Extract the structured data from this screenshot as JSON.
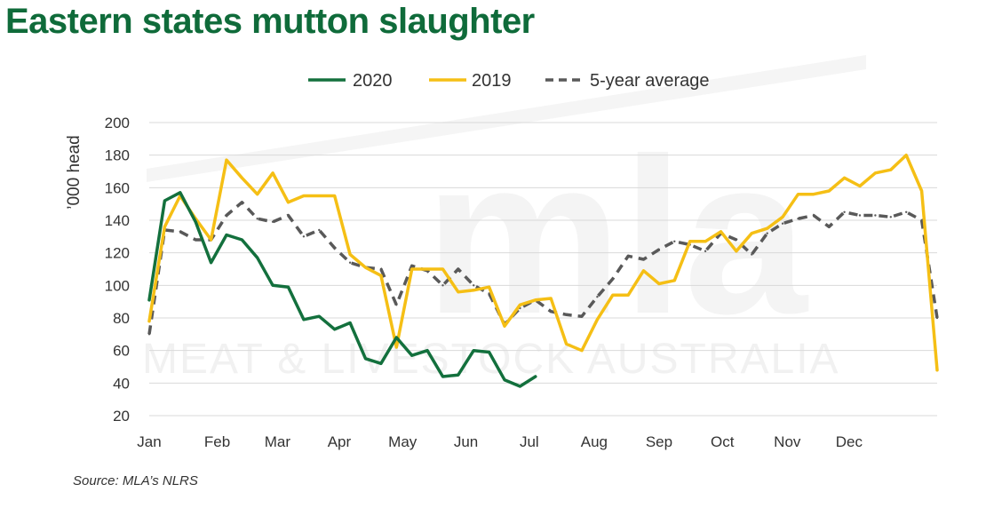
{
  "page": {
    "source": "Source: MLA’s NLRS"
  },
  "watermark": {
    "logo": "mla",
    "text": "MEAT & LIVESTOCK AUSTRALIA"
  },
  "chart_data": {
    "type": "line",
    "title": "Eastern states mutton slaughter",
    "ylabel": "’000 head",
    "xlabel": "",
    "ylim": [
      20,
      200
    ],
    "yticks": [
      20,
      40,
      60,
      80,
      100,
      120,
      140,
      160,
      180,
      200
    ],
    "xlim": [
      1,
      52
    ],
    "month_labels": [
      "Jan",
      "Feb",
      "Mar",
      "Apr",
      "May",
      "Jun",
      "Jul",
      "Aug",
      "Sep",
      "Oct",
      "Nov",
      "Dec"
    ],
    "month_weeks": [
      1,
      5.4,
      9.3,
      13.3,
      17.4,
      21.5,
      25.6,
      29.8,
      34.0,
      38.1,
      42.3,
      46.3
    ],
    "grid": "horizontal",
    "legend_position": "top",
    "colors": {
      "2020": "#13703d",
      "2019": "#f5bf15",
      "avg": "#595959"
    },
    "series": [
      {
        "name": "2020",
        "style": "solid",
        "color": "#13703d",
        "x": [
          1,
          2,
          3,
          4,
          5,
          6,
          7,
          8,
          9,
          10,
          11,
          12,
          13,
          14,
          15,
          16,
          17,
          18,
          19,
          20,
          21,
          22,
          23,
          24,
          25,
          26
        ],
        "y": [
          91,
          152,
          157,
          139,
          114,
          131,
          128,
          117,
          100,
          99,
          79,
          81,
          73,
          77,
          55,
          52,
          68,
          57,
          60,
          44,
          45,
          60,
          59,
          42,
          38,
          44
        ]
      },
      {
        "name": "2019",
        "style": "solid",
        "color": "#f5bf15",
        "x": [
          1,
          2,
          3,
          4,
          5,
          6,
          7,
          8,
          9,
          10,
          11,
          12,
          13,
          14,
          15,
          16,
          17,
          18,
          19,
          20,
          21,
          22,
          23,
          24,
          25,
          26,
          27,
          28,
          29,
          30,
          31,
          32,
          33,
          34,
          35,
          36,
          37,
          38,
          39,
          40,
          41,
          42,
          43,
          44,
          45,
          46,
          47,
          48,
          49,
          50,
          51,
          52
        ],
        "y": [
          78,
          136,
          155,
          141,
          128,
          177,
          166,
          156,
          169,
          151,
          155,
          155,
          155,
          119,
          111,
          106,
          62,
          110,
          110,
          110,
          96,
          97,
          99,
          75,
          88,
          91,
          92,
          64,
          60,
          79,
          94,
          94,
          109,
          101,
          103,
          127,
          127,
          133,
          121,
          132,
          135,
          142,
          156,
          156,
          158,
          166,
          161,
          169,
          171,
          180,
          158,
          48
        ]
      },
      {
        "name": "5-year average",
        "style": "dashed",
        "color": "#595959",
        "x": [
          1,
          2,
          3,
          4,
          5,
          6,
          7,
          8,
          9,
          10,
          11,
          12,
          13,
          14,
          15,
          16,
          17,
          18,
          19,
          20,
          21,
          22,
          23,
          24,
          25,
          26,
          27,
          28,
          29,
          30,
          31,
          32,
          33,
          34,
          35,
          36,
          37,
          38,
          39,
          40,
          41,
          42,
          43,
          44,
          45,
          46,
          47,
          48,
          49,
          50,
          51,
          52
        ],
        "y": [
          70,
          134,
          133,
          128,
          128,
          143,
          151,
          141,
          139,
          143,
          130,
          134,
          123,
          114,
          111,
          110,
          88,
          112,
          109,
          100,
          110,
          100,
          95,
          76,
          86,
          91,
          84,
          82,
          81,
          93,
          104,
          118,
          116,
          122,
          127,
          125,
          121,
          132,
          128,
          119,
          132,
          138,
          141,
          143,
          136,
          145,
          143,
          143,
          142,
          145,
          140,
          80
        ]
      }
    ]
  }
}
